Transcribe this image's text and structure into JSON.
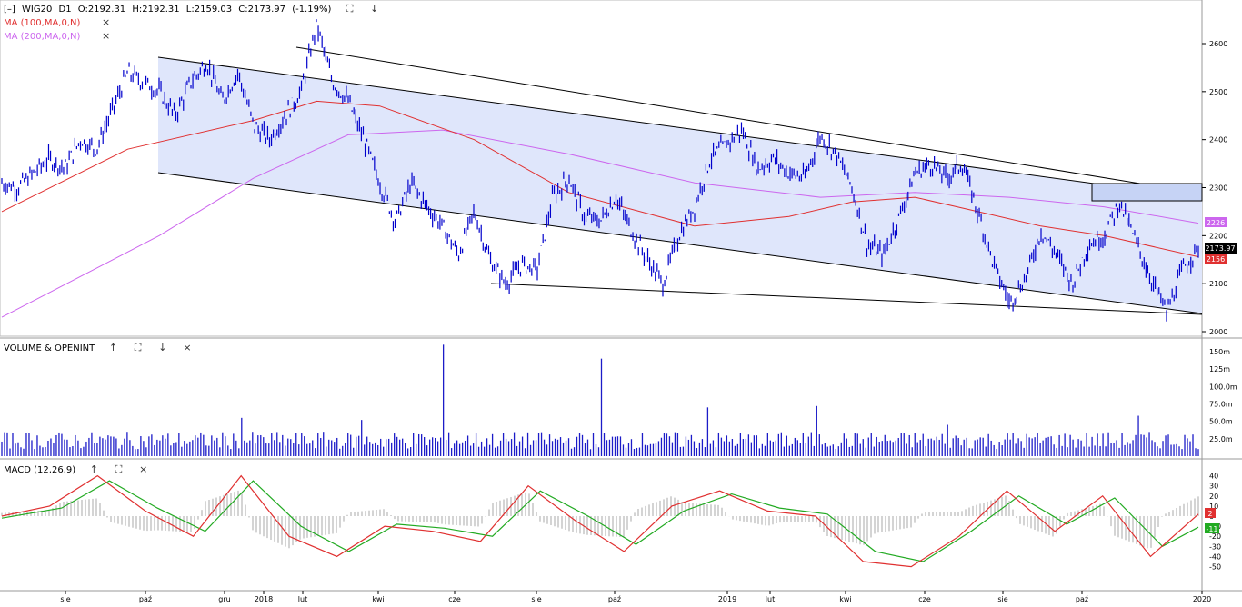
{
  "main_panel": {
    "collapse_glyph": "[–]",
    "symbol": "WIG20",
    "interval": "D1",
    "ohlc": {
      "open": "O:2192.31",
      "high": "H:2192.31",
      "low": "L:2159.03",
      "close": "C:2173.97",
      "change": "(-1.19%)"
    },
    "indicators": [
      {
        "label": "MA (100,MA,0,N)",
        "color": "#e03030"
      },
      {
        "label": "MA (200,MA,0,N)",
        "color": "#cc66ee"
      }
    ],
    "price_labels": {
      "last": "2173.97",
      "ma200": "2226",
      "ma100": "2156"
    },
    "y_ticks": [
      "2600",
      "2500",
      "2400",
      "2300",
      "2200",
      "2100",
      "2000"
    ]
  },
  "volume_panel": {
    "label": "VOLUME & OPENINT",
    "y_ticks": [
      "150m",
      "125m",
      "100.0m",
      "75.0m",
      "50.0m",
      "25.0m"
    ]
  },
  "macd_panel": {
    "label": "MACD (12,26,9)",
    "y_ticks": [
      "40",
      "30",
      "20",
      "10",
      "0",
      "-10",
      "-20",
      "-30",
      "-40",
      "-50"
    ],
    "value_macd": "2",
    "value_signal": "-11"
  },
  "x_axis": {
    "labels": [
      "sie",
      "paź",
      "gru",
      "2018",
      "lut",
      "kwi",
      "cze",
      "sie",
      "paź",
      "2019",
      "lut",
      "kwi",
      "cze",
      "sie",
      "paź",
      "2020"
    ]
  },
  "controls": {
    "expand": "⛶",
    "down": "↓",
    "up": "↑",
    "close": "×"
  },
  "colors": {
    "price": "#0000cc",
    "ma100": "#e03030",
    "ma200": "#cc66ee",
    "macd": "#e03030",
    "signal": "#22aa22",
    "channel_fill": "#dfe6fb",
    "volume": "#1c1cc8"
  },
  "chart_data": {
    "type": "line",
    "symbol": "WIG20",
    "price_series": {
      "name": "WIG20",
      "points": [
        [
          0,
          2310
        ],
        [
          1,
          2300
        ],
        [
          2,
          2330
        ],
        [
          3,
          2360
        ],
        [
          4,
          2340
        ],
        [
          5,
          2400
        ],
        [
          6,
          2380
        ],
        [
          7,
          2460
        ],
        [
          8,
          2540
        ],
        [
          9,
          2520
        ],
        [
          10,
          2500
        ],
        [
          11,
          2450
        ],
        [
          12,
          2520
        ],
        [
          13,
          2560
        ],
        [
          14,
          2480
        ],
        [
          15,
          2540
        ],
        [
          16,
          2430
        ],
        [
          17,
          2400
        ],
        [
          18,
          2450
        ],
        [
          19,
          2500
        ],
        [
          20,
          2640
        ],
        [
          21,
          2520
        ],
        [
          22,
          2480
        ],
        [
          23,
          2400
        ],
        [
          24,
          2310
        ],
        [
          25,
          2230
        ],
        [
          26,
          2310
        ],
        [
          27,
          2260
        ],
        [
          28,
          2220
        ],
        [
          29,
          2160
        ],
        [
          30,
          2250
        ],
        [
          31,
          2150
        ],
        [
          32,
          2100
        ],
        [
          33,
          2140
        ],
        [
          34,
          2130
        ],
        [
          35,
          2280
        ],
        [
          36,
          2320
        ],
        [
          37,
          2240
        ],
        [
          38,
          2230
        ],
        [
          39,
          2280
        ],
        [
          40,
          2210
        ],
        [
          41,
          2150
        ],
        [
          42,
          2100
        ],
        [
          43,
          2200
        ],
        [
          44,
          2260
        ],
        [
          45,
          2360
        ],
        [
          46,
          2390
        ],
        [
          47,
          2420
        ],
        [
          48,
          2340
        ],
        [
          49,
          2360
        ],
        [
          50,
          2330
        ],
        [
          51,
          2320
        ],
        [
          52,
          2410
        ],
        [
          53,
          2370
        ],
        [
          54,
          2300
        ],
        [
          55,
          2180
        ],
        [
          56,
          2160
        ],
        [
          57,
          2240
        ],
        [
          58,
          2330
        ],
        [
          59,
          2350
        ],
        [
          60,
          2320
        ],
        [
          61,
          2350
        ],
        [
          62,
          2250
        ],
        [
          63,
          2140
        ],
        [
          64,
          2060
        ],
        [
          65,
          2110
        ],
        [
          66,
          2210
        ],
        [
          67,
          2160
        ],
        [
          68,
          2100
        ],
        [
          69,
          2180
        ],
        [
          70,
          2200
        ],
        [
          71,
          2270
        ],
        [
          72,
          2190
        ],
        [
          73,
          2110
        ],
        [
          74,
          2040
        ],
        [
          75,
          2130
        ],
        [
          76,
          2174
        ]
      ]
    },
    "ma100": {
      "name": "MA (100,MA,0,N)",
      "points": [
        [
          0,
          2250
        ],
        [
          8,
          2380
        ],
        [
          16,
          2440
        ],
        [
          20,
          2480
        ],
        [
          24,
          2470
        ],
        [
          30,
          2400
        ],
        [
          36,
          2290
        ],
        [
          44,
          2220
        ],
        [
          50,
          2240
        ],
        [
          54,
          2270
        ],
        [
          58,
          2280
        ],
        [
          62,
          2250
        ],
        [
          66,
          2220
        ],
        [
          70,
          2200
        ],
        [
          76,
          2156
        ]
      ]
    },
    "ma200": {
      "name": "MA (200,MA,0,N)",
      "points": [
        [
          0,
          2030
        ],
        [
          10,
          2200
        ],
        [
          16,
          2320
        ],
        [
          22,
          2410
        ],
        [
          28,
          2420
        ],
        [
          36,
          2370
        ],
        [
          44,
          2310
        ],
        [
          52,
          2280
        ],
        [
          58,
          2290
        ],
        [
          64,
          2280
        ],
        [
          70,
          2260
        ],
        [
          76,
          2226
        ]
      ]
    },
    "volume": {
      "unit": "m",
      "typical_range": [
        10,
        35
      ],
      "spikes": [
        [
          37,
          160
        ],
        [
          50,
          140
        ],
        [
          20,
          55
        ],
        [
          30,
          52
        ],
        [
          59,
          70
        ],
        [
          68,
          72
        ],
        [
          79,
          45
        ],
        [
          95,
          58
        ]
      ]
    },
    "macd": {
      "name": "MACD (12,26,9)",
      "points": [
        [
          0,
          0
        ],
        [
          4,
          10
        ],
        [
          8,
          40
        ],
        [
          12,
          5
        ],
        [
          16,
          -20
        ],
        [
          20,
          40
        ],
        [
          24,
          -20
        ],
        [
          28,
          -40
        ],
        [
          32,
          -10
        ],
        [
          36,
          -15
        ],
        [
          40,
          -25
        ],
        [
          44,
          30
        ],
        [
          48,
          -5
        ],
        [
          52,
          -35
        ],
        [
          56,
          10
        ],
        [
          60,
          25
        ],
        [
          64,
          5
        ],
        [
          68,
          0
        ],
        [
          72,
          -45
        ],
        [
          76,
          -50
        ],
        [
          80,
          -20
        ],
        [
          84,
          25
        ],
        [
          88,
          -15
        ],
        [
          92,
          20
        ],
        [
          96,
          -40
        ],
        [
          100,
          2
        ]
      ]
    },
    "signal": {
      "points": [
        [
          0,
          -2
        ],
        [
          5,
          8
        ],
        [
          9,
          35
        ],
        [
          13,
          8
        ],
        [
          17,
          -15
        ],
        [
          21,
          35
        ],
        [
          25,
          -10
        ],
        [
          29,
          -35
        ],
        [
          33,
          -8
        ],
        [
          37,
          -12
        ],
        [
          41,
          -20
        ],
        [
          45,
          25
        ],
        [
          49,
          0
        ],
        [
          53,
          -28
        ],
        [
          57,
          5
        ],
        [
          61,
          22
        ],
        [
          65,
          8
        ],
        [
          69,
          2
        ],
        [
          73,
          -35
        ],
        [
          77,
          -45
        ],
        [
          81,
          -15
        ],
        [
          85,
          20
        ],
        [
          89,
          -8
        ],
        [
          93,
          18
        ],
        [
          97,
          -30
        ],
        [
          100,
          -11
        ]
      ]
    },
    "y_range": [
      2000,
      2650
    ]
  }
}
